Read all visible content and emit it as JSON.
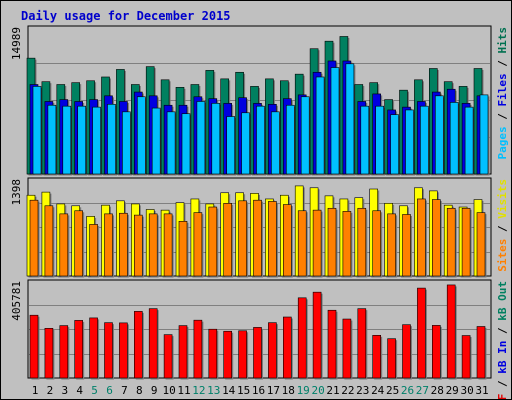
{
  "chart_data": [
    {
      "type": "bar",
      "title": "Daily usage for December 2015",
      "ylabel_parts": [
        {
          "text": "Pages",
          "color": "#00c0ff"
        },
        {
          "text": " / ",
          "color": "#000000"
        },
        {
          "text": "Files",
          "color": "#0000e0"
        },
        {
          "text": " / ",
          "color": "#000000"
        },
        {
          "text": "Hits",
          "color": "#007050"
        }
      ],
      "ymax_label": "14989",
      "ylim": [
        0,
        15500
      ],
      "categories": [
        "1",
        "2",
        "3",
        "4",
        "5",
        "6",
        "7",
        "8",
        "9",
        "10",
        "11",
        "12",
        "13",
        "14",
        "15",
        "16",
        "17",
        "18",
        "19",
        "20",
        "21",
        "22",
        "23",
        "24",
        "25",
        "26",
        "27",
        "28",
        "29",
        "30",
        "31"
      ],
      "weekend_days": [
        "5",
        "6",
        "12",
        "13",
        "19",
        "20",
        "26",
        "27"
      ],
      "series": [
        {
          "name": "Hits",
          "color": "#008060",
          "values": [
            12300,
            9800,
            9500,
            9700,
            9900,
            10300,
            11100,
            9500,
            11400,
            10000,
            9200,
            9500,
            11000,
            10100,
            10800,
            9300,
            10100,
            9900,
            10600,
            13300,
            14100,
            14600,
            9500,
            9700,
            7900,
            8900,
            10000,
            11200,
            9800,
            9300,
            11200
          ]
        },
        {
          "name": "Files",
          "color": "#0000e0",
          "values": [
            9500,
            7700,
            7900,
            7700,
            7900,
            8300,
            7700,
            8700,
            8300,
            7300,
            7300,
            8200,
            8000,
            7500,
            8100,
            7500,
            7400,
            8000,
            8400,
            10800,
            12000,
            12000,
            7700,
            8500,
            6800,
            7100,
            7700,
            8700,
            9000,
            7500,
            8300
          ]
        },
        {
          "name": "Pages",
          "color": "#00c0ff",
          "values": [
            9300,
            7300,
            7200,
            7200,
            7100,
            7400,
            6600,
            8200,
            7000,
            6600,
            6400,
            7700,
            7500,
            6100,
            6500,
            7200,
            6600,
            7300,
            8200,
            10300,
            11300,
            11700,
            7200,
            7200,
            6300,
            6800,
            7200,
            8300,
            7600,
            7100,
            8400
          ]
        }
      ]
    },
    {
      "type": "bar",
      "ylabel_parts": [
        {
          "text": "Sites",
          "color": "#ff8000"
        },
        {
          "text": " / ",
          "color": "#000000"
        },
        {
          "text": "Visits",
          "color": "#e0e000"
        }
      ],
      "ymax_label": "1398",
      "ylim": [
        0,
        1545
      ],
      "categories": [
        "1",
        "2",
        "3",
        "4",
        "5",
        "6",
        "7",
        "8",
        "9",
        "10",
        "11",
        "12",
        "13",
        "14",
        "15",
        "16",
        "17",
        "18",
        "19",
        "20",
        "21",
        "22",
        "23",
        "24",
        "25",
        "26",
        "27",
        "28",
        "29",
        "30",
        "31"
      ],
      "series": [
        {
          "name": "Visits",
          "color": "#ffff00",
          "values": [
            1300,
            1350,
            1160,
            1130,
            960,
            1140,
            1210,
            1160,
            1070,
            1060,
            1180,
            1240,
            1160,
            1340,
            1340,
            1330,
            1240,
            1300,
            1450,
            1420,
            1290,
            1240,
            1260,
            1400,
            1170,
            1130,
            1420,
            1370,
            1140,
            1110,
            1230
          ]
        },
        {
          "name": "Sites",
          "color": "#ff8000",
          "values": [
            1220,
            1130,
            1000,
            1050,
            830,
            1000,
            1010,
            980,
            1000,
            1000,
            880,
            1020,
            1110,
            1170,
            1210,
            1220,
            1200,
            1150,
            1050,
            1060,
            1090,
            1040,
            1090,
            1050,
            1000,
            990,
            1240,
            1230,
            1090,
            1090,
            1020
          ]
        }
      ]
    },
    {
      "type": "bar",
      "ylabel_parts": [
        {
          "text": "kB F",
          "color": "#e00000"
        },
        {
          "text": " / ",
          "color": "#000000"
        },
        {
          "text": "kB In",
          "color": "#0000e0"
        },
        {
          "text": " / ",
          "color": "#000000"
        },
        {
          "text": "kB Out",
          "color": "#008060"
        }
      ],
      "ymax_label": "405781",
      "ylim": [
        0,
        425000
      ],
      "categories": [
        "1",
        "2",
        "3",
        "4",
        "5",
        "6",
        "7",
        "8",
        "9",
        "10",
        "11",
        "12",
        "13",
        "14",
        "15",
        "16",
        "17",
        "18",
        "19",
        "20",
        "21",
        "22",
        "23",
        "24",
        "25",
        "26",
        "27",
        "28",
        "29",
        "30",
        "31"
      ],
      "series": [
        {
          "name": "kB F",
          "color": "#ff0000",
          "values": [
            278000,
            220000,
            232000,
            255000,
            266000,
            245000,
            244000,
            295000,
            307000,
            192000,
            232000,
            256000,
            216000,
            207000,
            209000,
            224000,
            245000,
            270000,
            355000,
            380000,
            300000,
            261000,
            307000,
            189000,
            174000,
            236000,
            398000,
            233000,
            412000,
            188000,
            228000
          ]
        }
      ]
    }
  ]
}
